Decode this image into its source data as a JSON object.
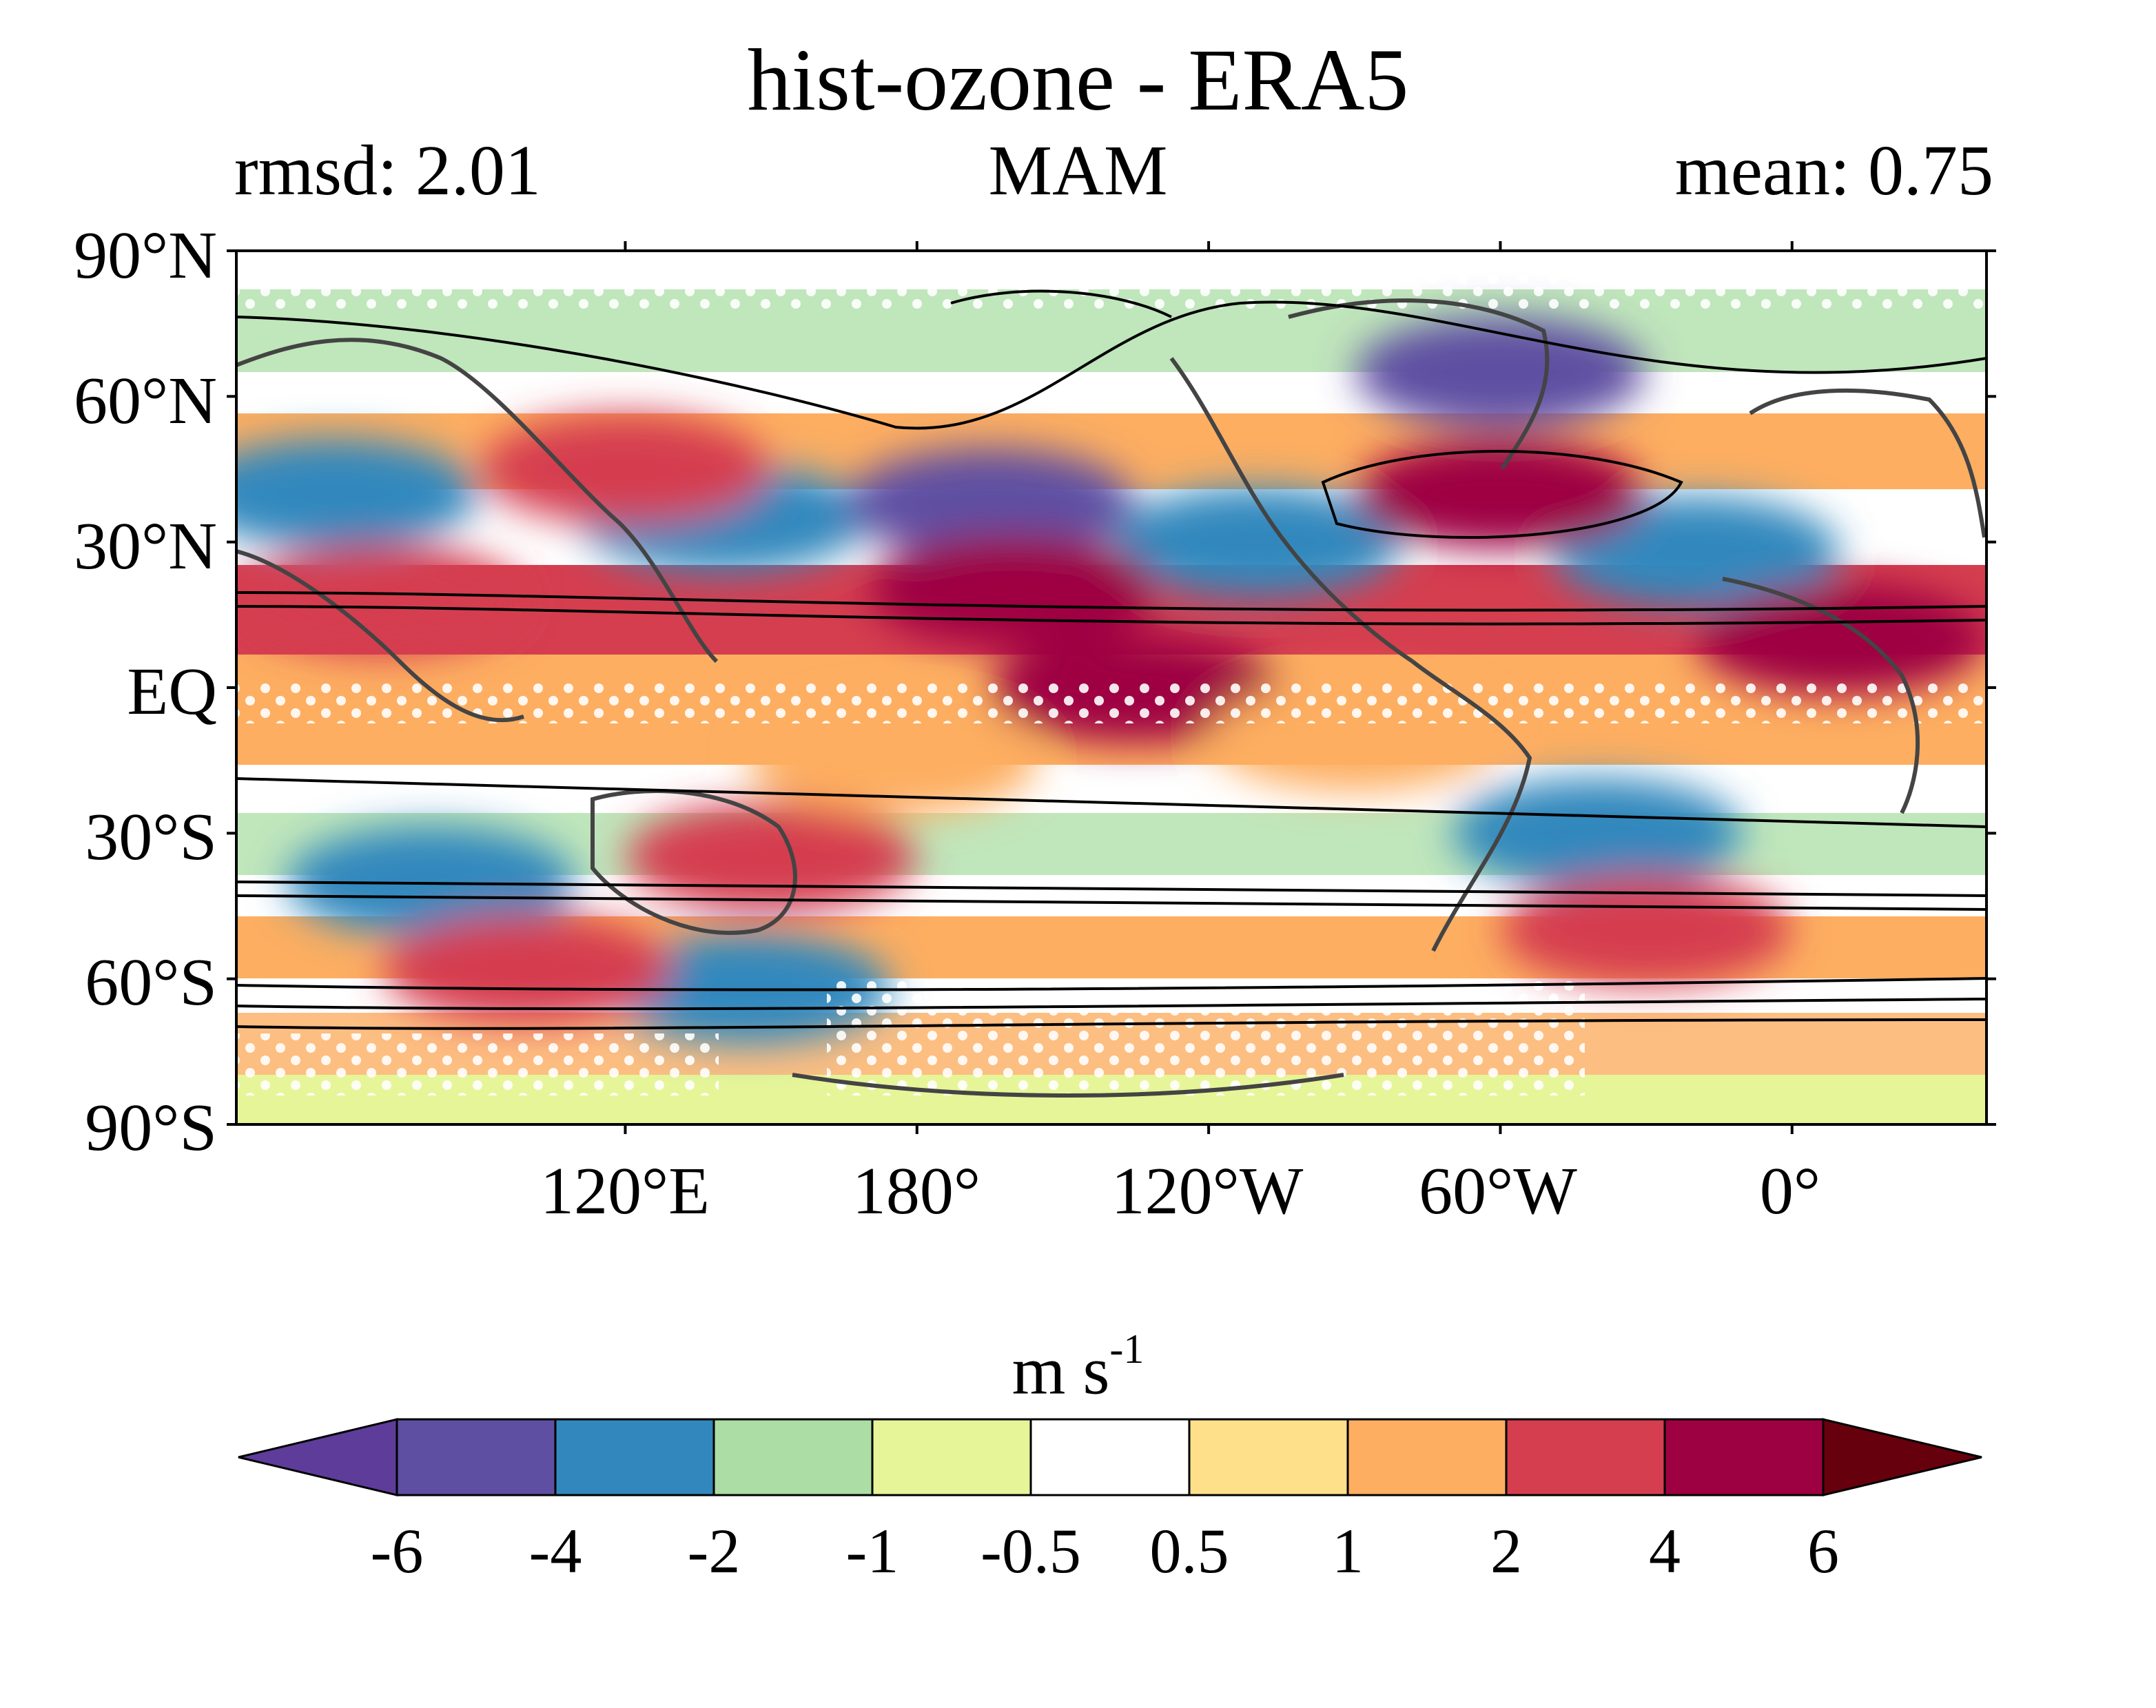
{
  "title": "hist-ozone - ERA5",
  "rmsd_label": "rmsd: 2.01",
  "season": "MAM",
  "mean_label": "mean: 0.75",
  "lat_ticks": [
    "90°N",
    "60°N",
    "30°N",
    "EQ",
    "30°S",
    "60°S",
    "90°S"
  ],
  "lon_ticks": [
    "120°E",
    "180°",
    "120°W",
    "60°W",
    "0°"
  ],
  "colorbar": {
    "units_base": "m s",
    "units_exp": "-1",
    "tick_labels": [
      "-6",
      "-4",
      "-2",
      "-1",
      "-0.5",
      "0.5",
      "1",
      "2",
      "4",
      "6"
    ],
    "colors": [
      "#5e3c99",
      "#5e4fa2",
      "#3288bd",
      "#abdda4",
      "#e6f598",
      "#ffffff",
      "#fee08b",
      "#fdae61",
      "#d53e4f",
      "#9e0142",
      "#67000d"
    ]
  },
  "map": {
    "lon_range": "40°E to 50°E (wrapped, centered near 135°W)",
    "lat_range": [
      -90,
      90
    ],
    "anomaly_cells": [
      {
        "lon": 60,
        "lat": 40,
        "level": "-2"
      },
      {
        "lon": 140,
        "lat": 35,
        "level": "-2"
      },
      {
        "lon": 195,
        "lat": 38,
        "level": "-4"
      },
      {
        "lon": 300,
        "lat": 65,
        "level": "-4"
      },
      {
        "lon": 250,
        "lat": 30,
        "level": "-2"
      },
      {
        "lon": 340,
        "lat": 28,
        "level": "-2"
      },
      {
        "lon": 320,
        "lat": -30,
        "level": "-2"
      },
      {
        "lon": 80,
        "lat": -40,
        "level": "-2"
      },
      {
        "lon": 145,
        "lat": -62,
        "level": "-2"
      },
      {
        "lon": 200,
        "lat": 20,
        "level": "4"
      },
      {
        "lon": 300,
        "lat": 40,
        "level": "4"
      },
      {
        "lon": 225,
        "lat": 0,
        "level": "4"
      },
      {
        "lon": 10,
        "lat": 10,
        "level": "4"
      },
      {
        "lon": 70,
        "lat": 18,
        "level": "2"
      },
      {
        "lon": 150,
        "lat": -35,
        "level": "2"
      },
      {
        "lon": 100,
        "lat": -58,
        "level": "2"
      },
      {
        "lon": 330,
        "lat": -50,
        "level": "2"
      },
      {
        "lon": 120,
        "lat": 45,
        "level": "2"
      },
      {
        "lon": 175,
        "lat": -15,
        "level": "1"
      },
      {
        "lon": 270,
        "lat": -10,
        "level": "1"
      }
    ]
  }
}
